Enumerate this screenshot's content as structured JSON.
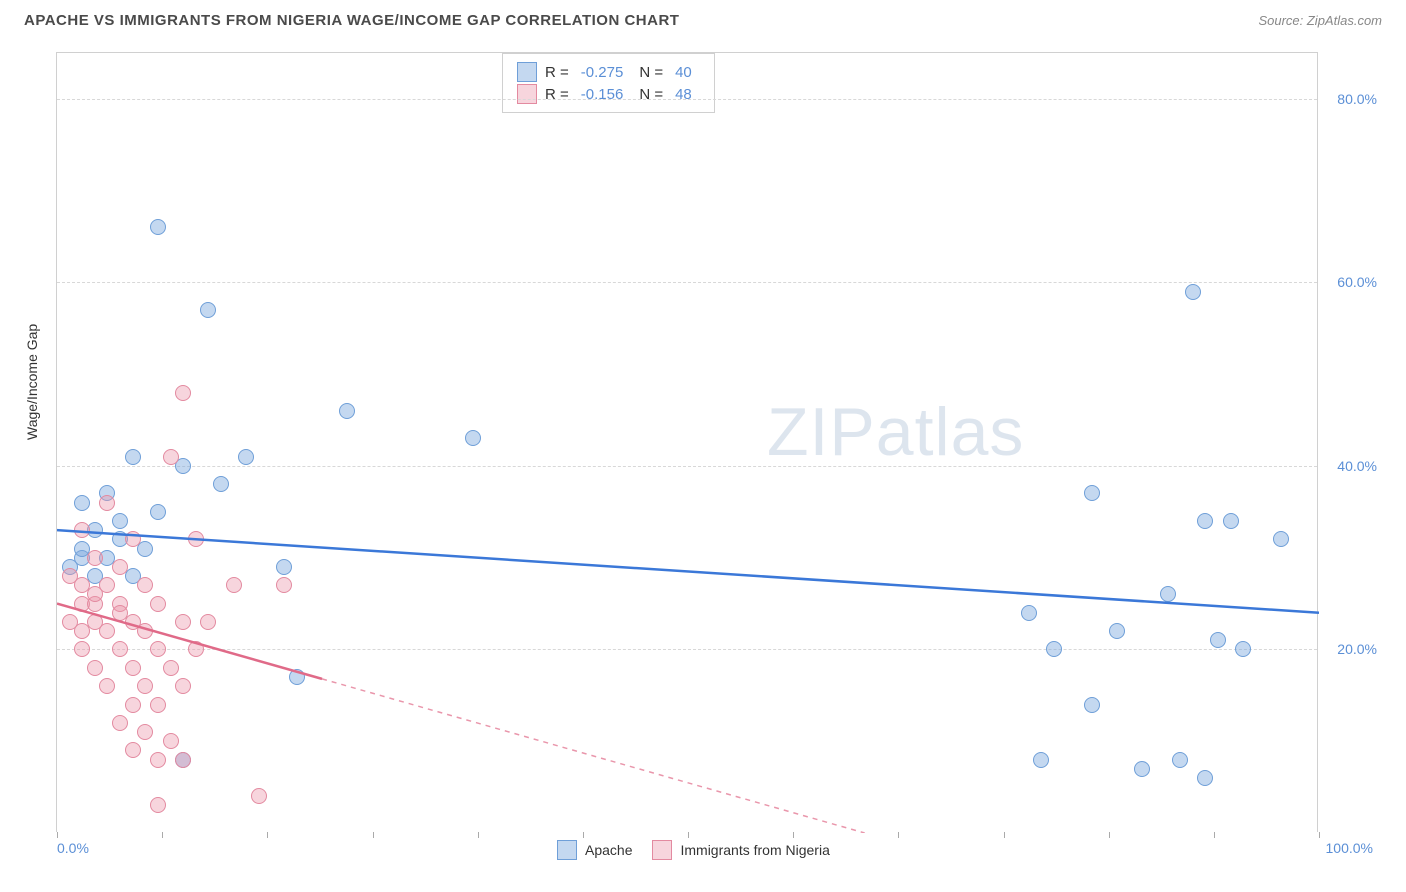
{
  "title": "APACHE VS IMMIGRANTS FROM NIGERIA WAGE/INCOME GAP CORRELATION CHART",
  "source": "Source: ZipAtlas.com",
  "y_axis_label": "Wage/Income Gap",
  "watermark": "ZIPatlas",
  "chart": {
    "type": "scatter",
    "xlim": [
      0,
      100
    ],
    "ylim": [
      0,
      85
    ],
    "y_ticks": [
      20,
      40,
      60,
      80
    ],
    "y_tick_labels": [
      "20.0%",
      "40.0%",
      "60.0%",
      "80.0%"
    ],
    "x_ticks": [
      0,
      8.33,
      16.67,
      25,
      33.33,
      41.67,
      50,
      58.33,
      66.67,
      75,
      83.33,
      91.67,
      100
    ],
    "x_end_labels": [
      "0.0%",
      "100.0%"
    ],
    "grid_color": "#d8d8d8",
    "background_color": "#ffffff",
    "series": [
      {
        "name": "Apache",
        "color_fill": "rgba(124,168,222,0.45)",
        "color_stroke": "#6f9fd8",
        "trend_color": "#3b78d8",
        "trend": {
          "x1": 0,
          "y1": 33,
          "x2": 100,
          "y2": 24,
          "dashed_after_x": null
        },
        "R": "-0.275",
        "N": "40",
        "points": [
          [
            8,
            66
          ],
          [
            12,
            57
          ],
          [
            23,
            46
          ],
          [
            33,
            43
          ],
          [
            15,
            41
          ],
          [
            6,
            41
          ],
          [
            10,
            40
          ],
          [
            13,
            38
          ],
          [
            4,
            37
          ],
          [
            2,
            36
          ],
          [
            8,
            35
          ],
          [
            90,
            59
          ],
          [
            82,
            37
          ],
          [
            91,
            34
          ],
          [
            93,
            34
          ],
          [
            97,
            32
          ],
          [
            3,
            33
          ],
          [
            5,
            32
          ],
          [
            7,
            31
          ],
          [
            2,
            30
          ],
          [
            4,
            30
          ],
          [
            1,
            29
          ],
          [
            6,
            28
          ],
          [
            3,
            28
          ],
          [
            18,
            29
          ],
          [
            77,
            24
          ],
          [
            88,
            26
          ],
          [
            84,
            22
          ],
          [
            92,
            21
          ],
          [
            94,
            20
          ],
          [
            79,
            20
          ],
          [
            82,
            14
          ],
          [
            19,
            17
          ],
          [
            10,
            8
          ],
          [
            78,
            8
          ],
          [
            89,
            8
          ],
          [
            86,
            7
          ],
          [
            91,
            6
          ],
          [
            2,
            31
          ],
          [
            5,
            34
          ]
        ]
      },
      {
        "name": "Immigrants from Nigeria",
        "color_fill": "rgba(236,150,170,0.4)",
        "color_stroke": "#e38aa0",
        "trend_color": "#e06a88",
        "trend": {
          "x1": 0,
          "y1": 25,
          "x2": 64,
          "y2": 0,
          "dashed_after_x": 21
        },
        "R": "-0.156",
        "N": "48",
        "points": [
          [
            10,
            48
          ],
          [
            9,
            41
          ],
          [
            4,
            36
          ],
          [
            2,
            33
          ],
          [
            6,
            32
          ],
          [
            11,
            32
          ],
          [
            3,
            30
          ],
          [
            5,
            29
          ],
          [
            1,
            28
          ],
          [
            2,
            27
          ],
          [
            4,
            27
          ],
          [
            7,
            27
          ],
          [
            14,
            27
          ],
          [
            18,
            27
          ],
          [
            2,
            25
          ],
          [
            3,
            25
          ],
          [
            5,
            25
          ],
          [
            8,
            25
          ],
          [
            1,
            23
          ],
          [
            3,
            23
          ],
          [
            6,
            23
          ],
          [
            10,
            23
          ],
          [
            12,
            23
          ],
          [
            2,
            22
          ],
          [
            4,
            22
          ],
          [
            7,
            22
          ],
          [
            2,
            20
          ],
          [
            5,
            20
          ],
          [
            8,
            20
          ],
          [
            11,
            20
          ],
          [
            3,
            18
          ],
          [
            6,
            18
          ],
          [
            9,
            18
          ],
          [
            4,
            16
          ],
          [
            7,
            16
          ],
          [
            10,
            16
          ],
          [
            6,
            14
          ],
          [
            8,
            14
          ],
          [
            5,
            12
          ],
          [
            7,
            11
          ],
          [
            9,
            10
          ],
          [
            6,
            9
          ],
          [
            8,
            8
          ],
          [
            10,
            8
          ],
          [
            16,
            4
          ],
          [
            8,
            3
          ],
          [
            3,
            26
          ],
          [
            5,
            24
          ]
        ]
      }
    ]
  },
  "legend_bottom": [
    {
      "swatch": "blue",
      "label": "Apache"
    },
    {
      "swatch": "pink",
      "label": "Immigrants from Nigeria"
    }
  ]
}
